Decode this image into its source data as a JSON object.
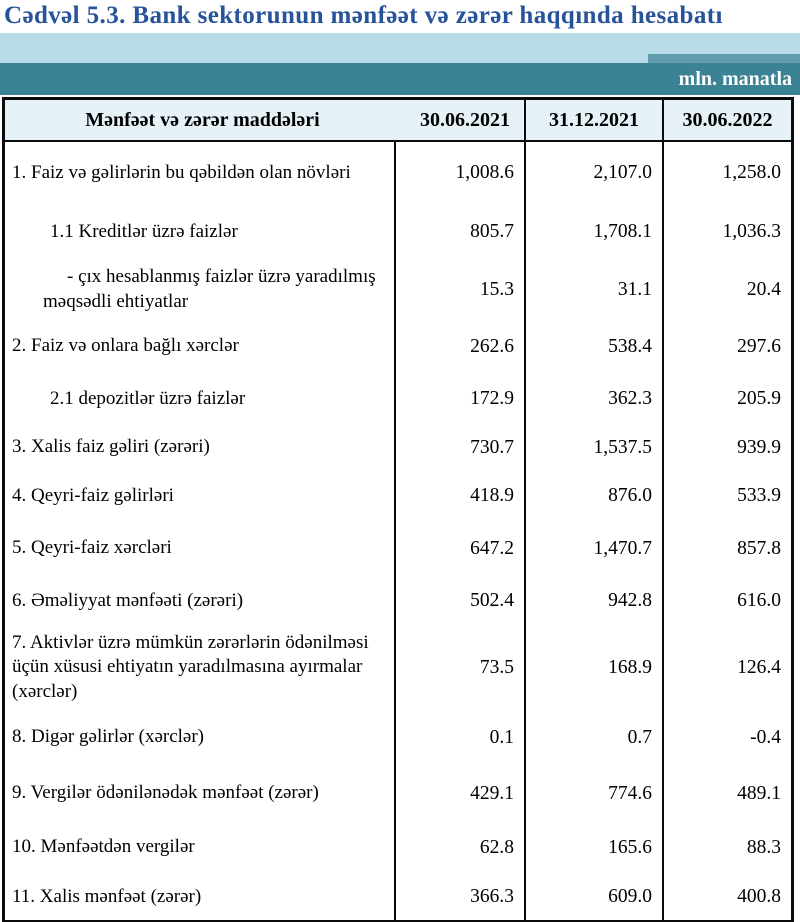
{
  "title": "Cədvəl 5.3. Bank sektorunun mənfəət və zərər haqqında hesabatı",
  "unit_label": "mln. manatla",
  "colors": {
    "title_blue": "#27539b",
    "band_light_blue": "#b9dde8",
    "band_teal": "#3a8294",
    "band_teal_light": "#619dac",
    "header_bg": "#e7f2f8",
    "border_black": "#0b0b0b"
  },
  "table": {
    "header": {
      "label_column": "Mənfəət və zərər maddələri",
      "date_columns": [
        "30.06.2021",
        "31.12.2021",
        "30.06.2022"
      ]
    },
    "rows": [
      {
        "label": "1. Faiz və gəlirlərin bu qəbildən olan növləri",
        "values": [
          "1,008.6",
          "2,107.0",
          "1,258.0"
        ]
      },
      {
        "label": "1.1 Kreditlər üzrə faizlər",
        "values": [
          "805.7",
          "1,708.1",
          "1,036.3"
        ]
      },
      {
        "label": "-  çıx hesablanmış faizlər üzrə yaradılmış məqsədli ehtiyatlar",
        "values": [
          "15.3",
          "31.1",
          "20.4"
        ]
      },
      {
        "label": "2. Faiz və onlara bağlı xərclər",
        "values": [
          "262.6",
          "538.4",
          "297.6"
        ]
      },
      {
        "label": "2.1 depozitlər üzrə faizlər",
        "values": [
          "172.9",
          "362.3",
          "205.9"
        ]
      },
      {
        "label": "3. Xalis faiz gəliri (zərəri)",
        "values": [
          "730.7",
          "1,537.5",
          "939.9"
        ]
      },
      {
        "label": "4. Qeyri-faiz gəlirləri",
        "values": [
          "418.9",
          "876.0",
          "533.9"
        ]
      },
      {
        "label": "5. Qeyri-faiz xərcləri",
        "values": [
          "647.2",
          "1,470.7",
          "857.8"
        ]
      },
      {
        "label": "6. Əməliyyat mənfəəti (zərəri)",
        "values": [
          "502.4",
          "942.8",
          "616.0"
        ]
      },
      {
        "label": "7. Aktivlər üzrə mümkün zərərlərin ödənilməsi üçün xüsusi ehtiyatın yaradılmasına ayırmalar (xərclər)",
        "values": [
          "73.5",
          "168.9",
          "126.4"
        ]
      },
      {
        "label": "8. Digər gəlirlər (xərclər)",
        "values": [
          "0.1",
          "0.7",
          "-0.4"
        ]
      },
      {
        "label": "9. Vergilər ödənilənədək mənfəət (zərər)",
        "values": [
          "429.1",
          "774.6",
          "489.1"
        ]
      },
      {
        "label": "10. Mənfəətdən vergilər",
        "values": [
          "62.8",
          "165.6",
          "88.3"
        ]
      },
      {
        "label": "11. Xalis mənfəət (zərər)",
        "values": [
          "366.3",
          "609.0",
          "400.8"
        ]
      }
    ]
  }
}
